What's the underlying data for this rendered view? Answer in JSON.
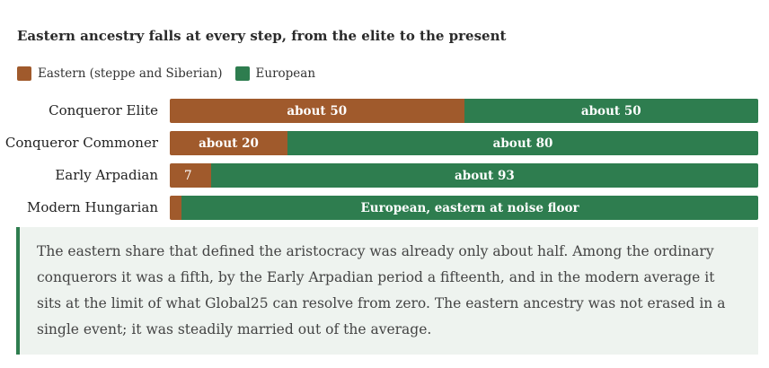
{
  "chart_data": {
    "type": "bar",
    "stacked": true,
    "orientation": "horizontal",
    "title": "Eastern ancestry falls at every step, from the elite to the present",
    "legend_position": "top-left",
    "colors": {
      "eastern": "#a05a2c",
      "european": "#2e7d4f"
    },
    "categories": [
      "Conqueror Elite",
      "Conqueror Commoner",
      "Early Arpadian",
      "Modern Hungarian"
    ],
    "series": [
      {
        "name": "Eastern (steppe and Siberian)",
        "values": [
          50,
          20,
          7,
          2
        ]
      },
      {
        "name": "European",
        "values": [
          50,
          80,
          93,
          98
        ]
      }
    ],
    "data_labels": [
      [
        "about 50",
        "about 50"
      ],
      [
        "about 20",
        "about 80"
      ],
      [
        "7",
        "about 93"
      ],
      [
        "",
        "European, eastern at noise floor"
      ]
    ]
  },
  "note": "The eastern share that defined the aristocracy was already only about half. Among the ordinary conquerors it was a fifth, by the Early Arpadian period a fifteenth, and in the modern average it sits at the limit of what Global25 can resolve from zero. The eastern ancestry was not erased in a single event; it was steadily married out of the average."
}
